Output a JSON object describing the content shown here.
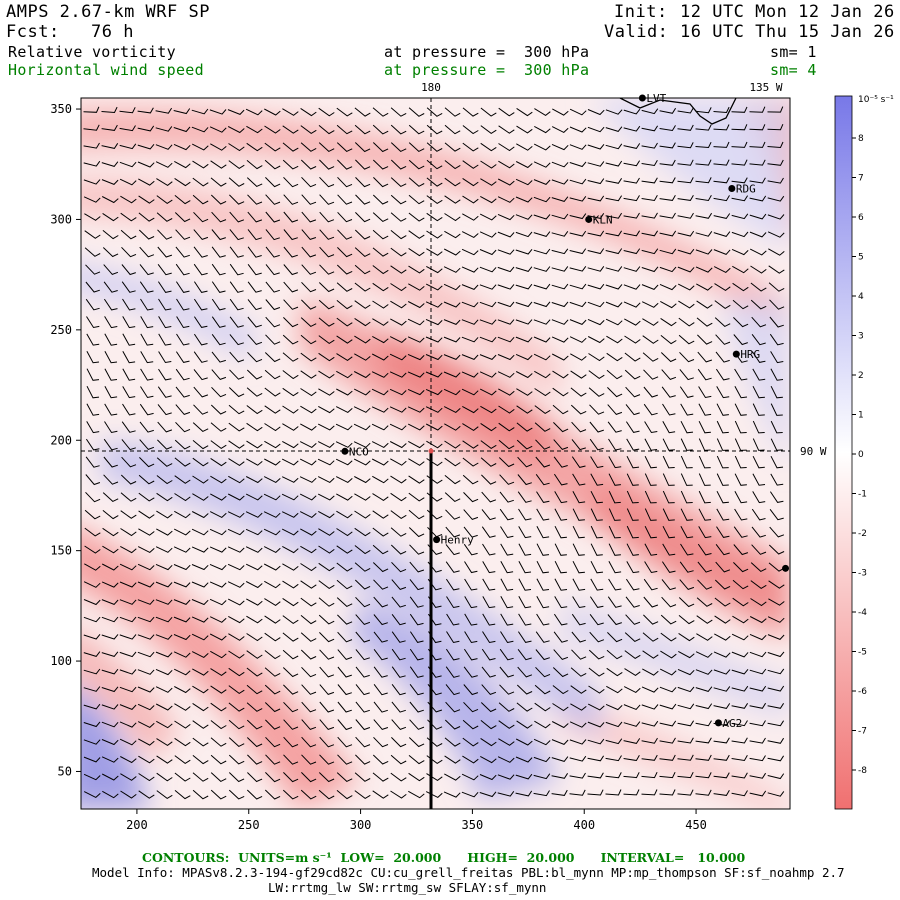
{
  "header": {
    "model": "AMPS 2.67-km WRF SP",
    "fcst_label": "Fcst:",
    "fcst_value": "76 h",
    "init_label": "Init:",
    "init_value": "12 UTC Mon 12 Jan 26",
    "valid_label": "Valid:",
    "valid_value": "16 UTC Thu 15 Jan 26",
    "field1": "Relative vorticity",
    "field1_level": "at pressure =  300 hPa",
    "field1_sm": "sm= 1",
    "field2": "Horizontal wind speed",
    "field2_level": "at pressure =  300 hPa",
    "field2_sm": "sm= 4"
  },
  "map": {
    "lon_label_180": "180",
    "lon_label_135w": "135 W",
    "lon_label_90w": "90 W",
    "x_ticks": [
      "200",
      "250",
      "300",
      "350",
      "400",
      "450"
    ],
    "y_ticks": [
      "50",
      "100",
      "150",
      "200",
      "250",
      "300",
      "350"
    ],
    "stations": [
      {
        "id": "LVT",
        "label": "LVT",
        "gx": 426,
        "gy": 355
      },
      {
        "id": "RDG",
        "label": "RDG",
        "gx": 466,
        "gy": 314
      },
      {
        "id": "KLN",
        "label": "KLN",
        "gx": 402,
        "gy": 300
      },
      {
        "id": "HRG",
        "label": "HRG",
        "gx": 468,
        "gy": 239
      },
      {
        "id": "NCO",
        "label": "NCO",
        "gx": 293,
        "gy": 195
      },
      {
        "id": "Henry",
        "label": "Henry",
        "gx": 334,
        "gy": 155
      },
      {
        "id": "AG2",
        "label": "AG2",
        "gx": 460,
        "gy": 72
      },
      {
        "id": "edge",
        "label": "",
        "gx": 490,
        "gy": 142
      }
    ]
  },
  "colorbar": {
    "units": "10⁻⁵ s⁻¹",
    "labels": [
      "8",
      "7",
      "6",
      "5",
      "4",
      "3",
      "2",
      "1",
      "0",
      "-1",
      "-2",
      "-3",
      "-4",
      "-5",
      "-6",
      "-7",
      "-8"
    ],
    "top_color": "#7878e8",
    "bottom_color": "#f07070"
  },
  "footer": {
    "contours": "CONTOURS:  UNITS=m s⁻¹  LOW=  20.000      HIGH=  20.000      INTERVAL=   10.000",
    "model_info_1": "Model Info: MPASv8.2.3-194-gf29cd82c CU:cu_grell_freitas PBL:bl_mynn MP:mp_thompson SF:sf_noahmp 2.7",
    "model_info_2": "LW:rrtmg_lw SW:rrtmg_sw SFLAY:sf_mynn"
  }
}
